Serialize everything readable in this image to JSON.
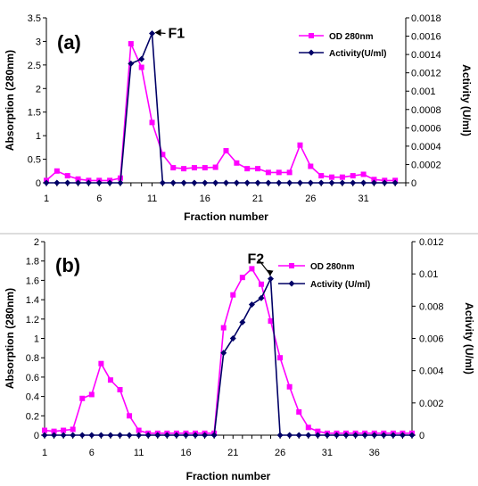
{
  "colors": {
    "od": "#ff00ff",
    "activity": "#000066",
    "axis": "#000000",
    "background": "#ffffff"
  },
  "chart_data": [
    {
      "type": "line",
      "panel_label": "(a)",
      "title": "",
      "xlabel": "Fraction number",
      "ylabel": "Absorption (280nm)",
      "y2label": "Activity (U/ml)",
      "xlim": [
        1,
        35
      ],
      "ylim": [
        0,
        3.5
      ],
      "y2lim": [
        0,
        0.0018
      ],
      "x_ticks": [
        "1",
        "6",
        "11",
        "16",
        "21",
        "26",
        "31"
      ],
      "y_ticks": [
        "0",
        "0.5",
        "1",
        "1.5",
        "2",
        "2.5",
        "3",
        "3.5"
      ],
      "y2_ticks": [
        "0",
        "0.0002",
        "0.0004",
        "0.0006",
        "0.0008",
        "0.001",
        "0.0012",
        "0.0014",
        "0.0016",
        "0.0018"
      ],
      "legend_position": "top-right",
      "series": [
        {
          "name": "OD 280nm",
          "axis": "left",
          "marker": "square",
          "x": [
            1,
            2,
            3,
            4,
            5,
            6,
            7,
            8,
            9,
            10,
            11,
            12,
            13,
            14,
            15,
            16,
            17,
            18,
            19,
            20,
            21,
            22,
            23,
            24,
            25,
            26,
            27,
            28,
            29,
            30,
            31,
            32,
            33,
            34
          ],
          "values": [
            0.05,
            0.25,
            0.15,
            0.08,
            0.05,
            0.05,
            0.05,
            0.1,
            2.95,
            2.45,
            1.28,
            0.6,
            0.32,
            0.3,
            0.32,
            0.32,
            0.33,
            0.68,
            0.42,
            0.3,
            0.3,
            0.22,
            0.22,
            0.22,
            0.8,
            0.35,
            0.15,
            0.12,
            0.12,
            0.15,
            0.18,
            0.07,
            0.05,
            0.05
          ]
        },
        {
          "name": "Activity(U/ml)",
          "axis": "right",
          "marker": "diamond",
          "x": [
            1,
            2,
            3,
            4,
            5,
            6,
            7,
            8,
            9,
            10,
            11,
            12,
            13,
            14,
            15,
            16,
            17,
            18,
            19,
            20,
            21,
            22,
            23,
            24,
            25,
            26,
            27,
            28,
            29,
            30,
            31,
            32,
            33,
            34
          ],
          "values": [
            0,
            0,
            0,
            0,
            0,
            0,
            0,
            0,
            0.0013,
            0.00135,
            0.00163,
            0,
            0,
            0,
            0,
            0,
            0,
            0,
            0,
            0,
            0,
            0,
            0,
            0,
            0,
            0,
            0,
            0,
            0,
            0,
            0,
            0,
            0,
            0
          ]
        }
      ],
      "annotation": {
        "text": "F1",
        "x": 11,
        "y2": 0.00163
      }
    },
    {
      "type": "line",
      "panel_label": "(b)",
      "title": "",
      "xlabel": "Fraction number",
      "ylabel": "Absorption (280nm)",
      "y2label": "Activity (U/ml)",
      "xlim": [
        1,
        40
      ],
      "ylim": [
        0,
        2
      ],
      "y2lim": [
        0,
        0.012
      ],
      "x_ticks": [
        "1",
        "6",
        "11",
        "16",
        "21",
        "26",
        "31",
        "36"
      ],
      "y_ticks": [
        "0",
        "0.2",
        "0.4",
        "0.6",
        "0.8",
        "1",
        "1.2",
        "1.4",
        "1.6",
        "1.8",
        "2"
      ],
      "y2_ticks": [
        "0",
        "0.002",
        "0.004",
        "0.006",
        "0.008",
        "0.01",
        "0.012"
      ],
      "legend_position": "top-right",
      "series": [
        {
          "name": "OD 280nm",
          "axis": "left",
          "marker": "square",
          "x": [
            1,
            2,
            3,
            4,
            5,
            6,
            7,
            8,
            9,
            10,
            11,
            12,
            13,
            14,
            15,
            16,
            17,
            18,
            19,
            20,
            21,
            22,
            23,
            24,
            25,
            26,
            27,
            28,
            29,
            30,
            31,
            32,
            33,
            34,
            35,
            36,
            37,
            38,
            39,
            40
          ],
          "values": [
            0.05,
            0.04,
            0.05,
            0.06,
            0.38,
            0.42,
            0.74,
            0.57,
            0.47,
            0.2,
            0.05,
            0.02,
            0.02,
            0.02,
            0.02,
            0.02,
            0.02,
            0.02,
            0.02,
            1.11,
            1.45,
            1.63,
            1.72,
            1.56,
            1.18,
            0.8,
            0.5,
            0.24,
            0.08,
            0.04,
            0.02,
            0.02,
            0.02,
            0.02,
            0.02,
            0.02,
            0.02,
            0.02,
            0.02,
            0.02
          ]
        },
        {
          "name": "Activity (U/ml)",
          "axis": "right",
          "marker": "diamond",
          "x": [
            1,
            2,
            3,
            4,
            5,
            6,
            7,
            8,
            9,
            10,
            11,
            12,
            13,
            14,
            15,
            16,
            17,
            18,
            19,
            20,
            21,
            22,
            23,
            24,
            25,
            26,
            27,
            28,
            29,
            30,
            31,
            32,
            33,
            34,
            35,
            36,
            37,
            38,
            39,
            40
          ],
          "values": [
            0,
            0,
            0,
            0,
            0,
            0,
            0,
            0,
            0,
            0,
            0,
            0,
            0,
            0,
            0,
            0,
            0,
            0,
            0,
            0.0051,
            0.006,
            0.007,
            0.0081,
            0.0085,
            0.0097,
            0,
            0,
            0,
            0,
            0,
            0,
            0,
            0,
            0,
            0,
            0,
            0,
            0,
            0,
            0
          ]
        }
      ],
      "annotation": {
        "text": "F2",
        "x": 25,
        "y2": 0.0097
      }
    }
  ]
}
